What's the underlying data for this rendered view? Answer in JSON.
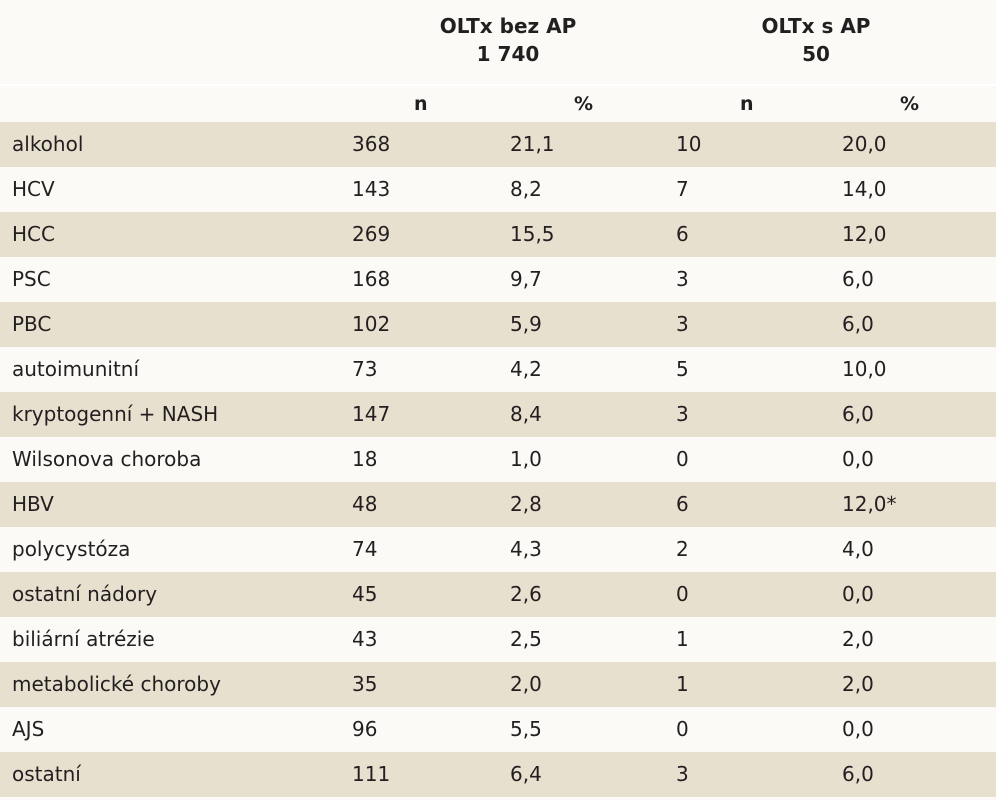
{
  "header": {
    "group1_title": "OLTx bez AP",
    "group1_count": "1 740",
    "group2_title": "OLTx s AP",
    "group2_count": "50",
    "col_n1": "n",
    "col_p1": "%",
    "col_n2": "n",
    "col_p2": "%"
  },
  "rows": [
    {
      "label": "alkohol",
      "n1": "368",
      "p1": "21,1",
      "n2": "10",
      "p2": "20,0"
    },
    {
      "label": "HCV",
      "n1": "143",
      "p1": "8,2",
      "n2": "7",
      "p2": "14,0"
    },
    {
      "label": "HCC",
      "n1": "269",
      "p1": "15,5",
      "n2": "6",
      "p2": "12,0"
    },
    {
      "label": "PSC",
      "n1": "168",
      "p1": "9,7",
      "n2": "3",
      "p2": "6,0"
    },
    {
      "label": "PBC",
      "n1": "102",
      "p1": "5,9",
      "n2": "3",
      "p2": "6,0"
    },
    {
      "label": "autoimunitní",
      "n1": "73",
      "p1": "4,2",
      "n2": "5",
      "p2": "10,0"
    },
    {
      "label": "kryptogenní + NASH",
      "n1": "147",
      "p1": "8,4",
      "n2": "3",
      "p2": "6,0"
    },
    {
      "label": "Wilsonova choroba",
      "n1": "18",
      "p1": "1,0",
      "n2": "0",
      "p2": "0,0"
    },
    {
      "label": "HBV",
      "n1": "48",
      "p1": "2,8",
      "n2": "6",
      "p2": "12,0*"
    },
    {
      "label": "polycystóza",
      "n1": "74",
      "p1": "4,3",
      "n2": "2",
      "p2": "4,0"
    },
    {
      "label": "ostatní nádory",
      "n1": "45",
      "p1": "2,6",
      "n2": "0",
      "p2": "0,0"
    },
    {
      "label": "biliární atrézie",
      "n1": "43",
      "p1": "2,5",
      "n2": "1",
      "p2": "2,0"
    },
    {
      "label": "metabolické choroby",
      "n1": "35",
      "p1": "2,0",
      "n2": "1",
      "p2": "2,0"
    },
    {
      "label": "AJS",
      "n1": "96",
      "p1": "5,5",
      "n2": "0",
      "p2": "0,0"
    },
    {
      "label": "ostatní",
      "n1": "111",
      "p1": "6,4",
      "n2": "3",
      "p2": "6,0"
    }
  ],
  "colors": {
    "background": "#fbfaf7",
    "shaded_row": "#e7e0cf",
    "text": "#231f20"
  }
}
